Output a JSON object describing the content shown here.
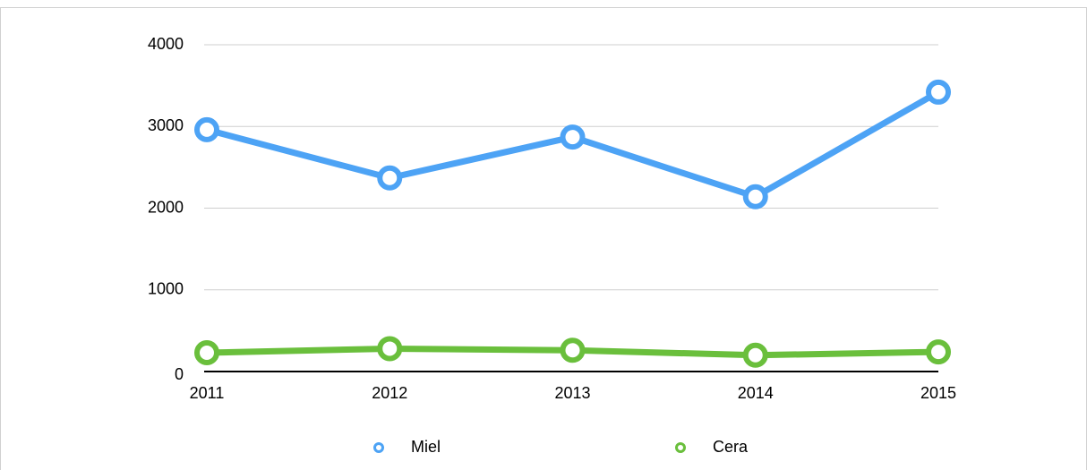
{
  "chart_data": {
    "type": "line",
    "categories": [
      "2011",
      "2012",
      "2013",
      "2014",
      "2015"
    ],
    "series": [
      {
        "name": "Miel",
        "color": "#4da3f5",
        "values": [
          2960,
          2370,
          2870,
          2140,
          3420
        ]
      },
      {
        "name": "Cera",
        "color": "#6abf3c",
        "values": [
          230,
          280,
          260,
          200,
          240
        ]
      }
    ],
    "ylim": [
      0,
      4000
    ],
    "yticks": [
      0,
      1000,
      2000,
      3000,
      4000
    ],
    "grid": true,
    "legend": "bottom"
  }
}
